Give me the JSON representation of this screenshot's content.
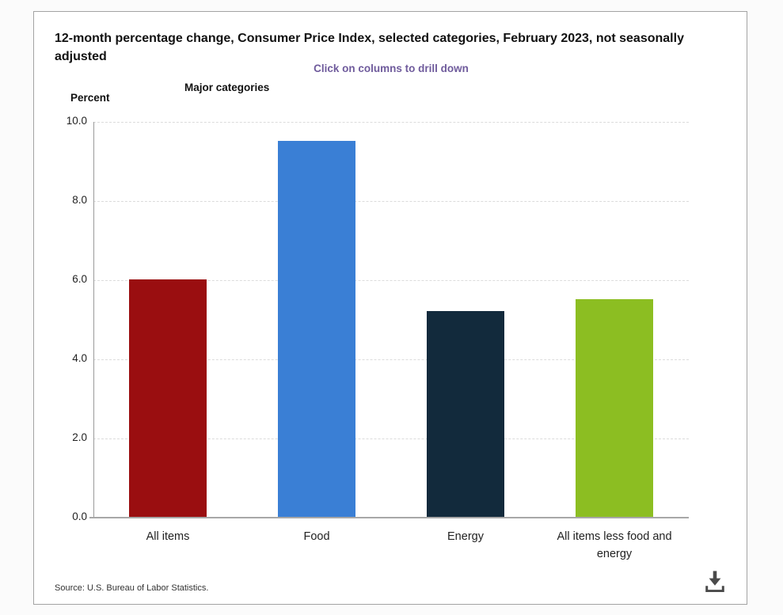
{
  "header": {
    "title": "12-month percentage change, Consumer Price Index, selected categories, February 2023, not seasonally adjusted",
    "subtitle": "Click on columns to drill down",
    "axis_group_title": "Major categories",
    "unit_label": "Percent"
  },
  "footer": {
    "source": "Source: U.S. Bureau of Labor Statistics.",
    "download_icon": "download-icon"
  },
  "colors": {
    "subtitle_purple": "#6f5b9c",
    "axis_gray": "#9a9a9a",
    "gridline_gray": "#dcdcdc",
    "download_gray": "#4a4a4a",
    "card_border": "#a3a3a3"
  },
  "chart_data": {
    "type": "bar",
    "title": "12-month percentage change, Consumer Price Index, selected categories, February 2023, not seasonally adjusted",
    "categories": [
      "All items",
      "Food",
      "Energy",
      "All items less food and energy"
    ],
    "values": [
      6.0,
      9.5,
      5.2,
      5.5
    ],
    "bar_colors": [
      "#9a0e10",
      "#3a7fd5",
      "#122a3c",
      "#8cbe22"
    ],
    "xlabel": "Major categories",
    "ylabel": "Percent",
    "ylim": [
      0,
      10
    ],
    "yticks": [
      0.0,
      2.0,
      4.0,
      6.0,
      8.0,
      10.0
    ],
    "ytick_labels": [
      "0.0",
      "2.0",
      "4.0",
      "6.0",
      "8.0",
      "10.0"
    ],
    "grid": "horizontal-dashed",
    "legend": "none"
  }
}
